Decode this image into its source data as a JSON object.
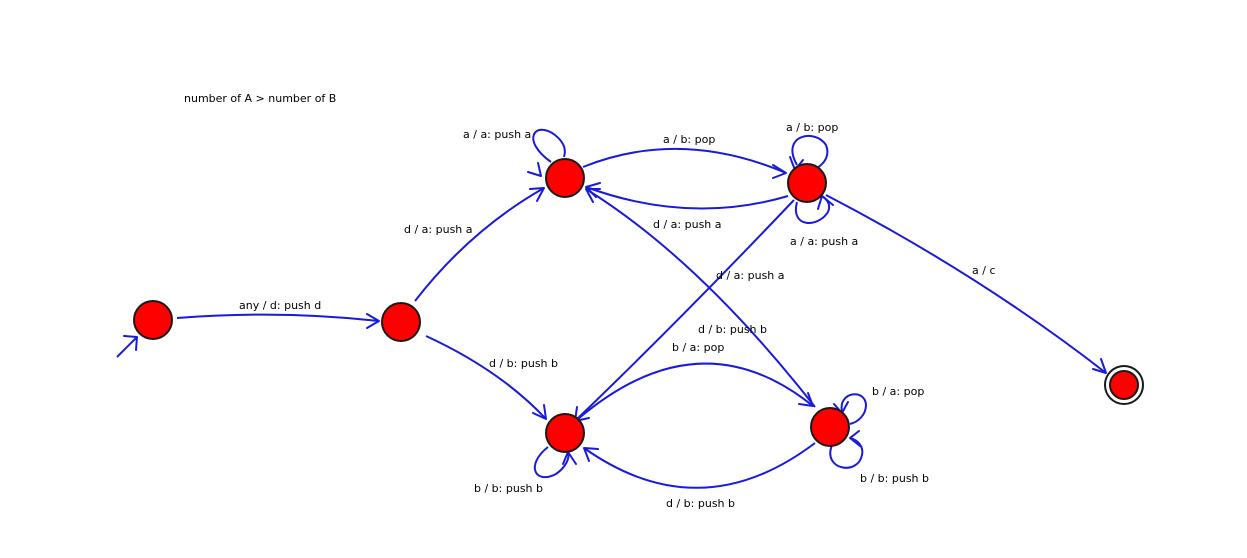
{
  "note": "number of A > number of B",
  "colors": {
    "state_fill": "#ff0000",
    "edge": "#1a1adb",
    "background": "#ffffff"
  },
  "states": [
    {
      "id": "s0",
      "initial": true
    },
    {
      "id": "s1"
    },
    {
      "id": "s2"
    },
    {
      "id": "s3"
    },
    {
      "id": "s4"
    },
    {
      "id": "s5"
    },
    {
      "id": "s6",
      "final": true
    }
  ],
  "transitions": [
    {
      "id": "t0",
      "from": "s0",
      "to": "s1",
      "label": "any / d: push d"
    },
    {
      "id": "t1",
      "from": "s1",
      "to": "s2",
      "label": "d / a: push a"
    },
    {
      "id": "t2",
      "from": "s1",
      "to": "s4",
      "label": "d / b: push b"
    },
    {
      "id": "t3",
      "from": "s2",
      "to": "s2",
      "label": "a / a: push a"
    },
    {
      "id": "t4",
      "from": "s2",
      "to": "s3",
      "label": "a / b: pop"
    },
    {
      "id": "t5",
      "from": "s3",
      "to": "s2",
      "label": "d / a: push a"
    },
    {
      "id": "t6",
      "from": "s3",
      "to": "s3",
      "label": "a / b: pop"
    },
    {
      "id": "t7",
      "from": "s3",
      "to": "s3",
      "label": "a / a: push a"
    },
    {
      "id": "t8",
      "from": "s3",
      "to": "s6",
      "label": "a / c"
    },
    {
      "id": "t9",
      "from": "s3",
      "to": "s4",
      "label": "d / a: push a"
    },
    {
      "id": "t10",
      "from": "s5",
      "to": "s2",
      "label": "d / b: push b"
    },
    {
      "id": "t11",
      "from": "s4",
      "to": "s5",
      "label": "b / a: pop"
    },
    {
      "id": "t12",
      "from": "s5",
      "to": "s4",
      "label": "d / b: push b"
    },
    {
      "id": "t13",
      "from": "s5",
      "to": "s5",
      "label": "b / a: pop"
    },
    {
      "id": "t14",
      "from": "s5",
      "to": "s5",
      "label": "b / b: push b"
    },
    {
      "id": "t15",
      "from": "s4",
      "to": "s4",
      "label": "b / b: push b"
    }
  ]
}
